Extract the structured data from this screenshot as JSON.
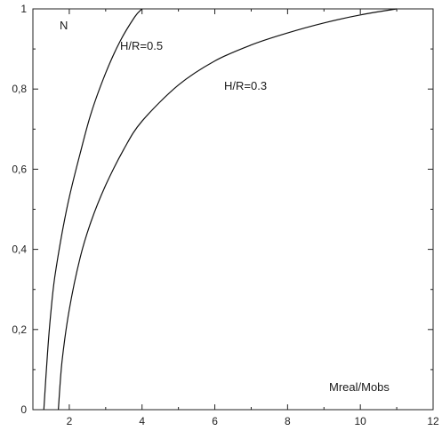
{
  "chart_data": {
    "type": "line",
    "title": "",
    "xlabel": "Mreal/Mobs",
    "ylabel": "N",
    "xlim": [
      1,
      12
    ],
    "ylim": [
      0,
      1
    ],
    "x_ticks": [
      2,
      4,
      6,
      8,
      10,
      12
    ],
    "x_tick_labels": [
      "2",
      "4",
      "6",
      "8",
      "10",
      "12"
    ],
    "y_ticks": [
      0,
      0.2,
      0.4,
      0.6,
      0.8,
      1
    ],
    "y_tick_labels": [
      "0",
      "0,2",
      "0,4",
      "0,6",
      "0,8",
      "1"
    ],
    "grid": false,
    "series": [
      {
        "name": "H/R=0.5",
        "x": [
          1.3,
          1.4,
          1.5,
          1.6,
          1.8,
          2.0,
          2.3,
          2.6,
          3.0,
          3.4,
          3.8,
          4.0
        ],
        "y": [
          0.0,
          0.14,
          0.25,
          0.33,
          0.44,
          0.53,
          0.64,
          0.74,
          0.84,
          0.92,
          0.98,
          1.0
        ]
      },
      {
        "name": "H/R=0.3",
        "x": [
          1.7,
          1.8,
          2.0,
          2.3,
          2.6,
          3.0,
          3.5,
          4.0,
          5.0,
          6.0,
          7.0,
          8.0,
          9.0,
          10.0,
          11.0
        ],
        "y": [
          0.0,
          0.12,
          0.25,
          0.38,
          0.47,
          0.56,
          0.65,
          0.72,
          0.81,
          0.87,
          0.91,
          0.94,
          0.965,
          0.985,
          1.0
        ]
      }
    ]
  },
  "labels": {
    "y_axis": "N",
    "x_axis": "Mreal/Mobs",
    "series_a": "H/R=0.5",
    "series_b": "H/R=0.3"
  }
}
